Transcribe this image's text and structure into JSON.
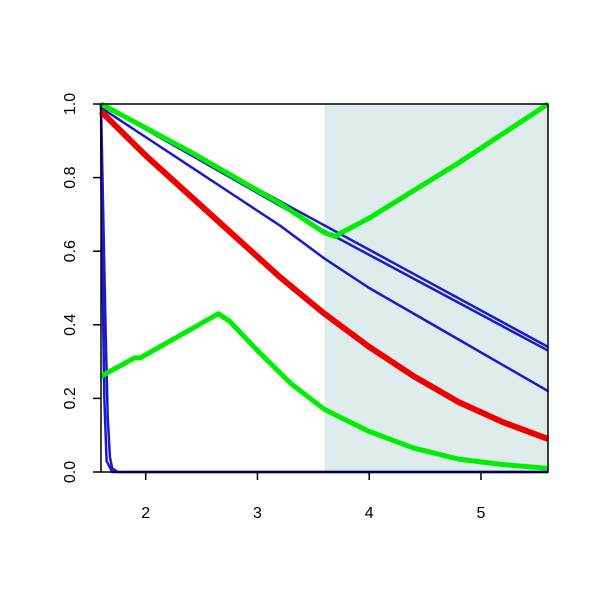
{
  "chart_data": {
    "type": "line",
    "xlim": [
      1.6,
      5.6
    ],
    "ylim": [
      0,
      1
    ],
    "xticks": [
      2,
      3,
      4,
      5
    ],
    "yticks": [
      {
        "value": 0,
        "label": "0.0"
      },
      0.2,
      0.4,
      0.6,
      0.8,
      {
        "value": 1,
        "label": "1.0"
      }
    ],
    "shade": {
      "xlim": [
        3.6,
        5.6
      ],
      "color": "#dfecec"
    },
    "series": [
      {
        "color": "#1a1acc",
        "width": 2.5,
        "x": [
          1.6,
          5.6
        ],
        "values": [
          1.0,
          0.34
        ]
      },
      {
        "color": "#1a1acc",
        "width": 2.5,
        "x": [
          1.6,
          3.6,
          5.6
        ],
        "values": [
          1.0,
          0.655,
          0.33
        ]
      },
      {
        "color": "#1a1acc",
        "width": 2.5,
        "x": [
          1.6,
          2.0,
          2.4,
          2.8,
          3.2,
          3.6,
          4.0,
          4.4,
          4.8,
          5.2,
          5.6
        ],
        "values": [
          0.99,
          0.91,
          0.83,
          0.75,
          0.67,
          0.58,
          0.5,
          0.43,
          0.36,
          0.29,
          0.22
        ]
      },
      {
        "color": "#1a1acc",
        "width": 2.5,
        "x": [
          1.6,
          1.62,
          1.64,
          1.66,
          1.68,
          1.7,
          1.75,
          5.6
        ],
        "values": [
          1.0,
          0.7,
          0.4,
          0.15,
          0.04,
          0.01,
          0,
          0
        ]
      },
      {
        "color": "#1a1acc",
        "width": 2.5,
        "x": [
          1.6,
          1.61,
          1.63,
          1.65,
          1.7,
          5.6
        ],
        "values": [
          1.0,
          0.6,
          0.2,
          0.03,
          0,
          0
        ]
      },
      {
        "color": "#ee0000",
        "width": 6,
        "x": [
          1.6,
          2.0,
          2.4,
          2.8,
          3.2,
          3.6,
          4.0,
          4.4,
          4.8,
          5.2,
          5.6
        ],
        "values": [
          0.98,
          0.86,
          0.75,
          0.64,
          0.53,
          0.43,
          0.34,
          0.26,
          0.19,
          0.135,
          0.09
        ]
      },
      {
        "color": "#00ee00",
        "width": 5,
        "x": [
          1.6,
          2.0,
          2.4,
          2.8,
          3.2,
          3.6,
          3.7,
          3.75,
          4.0,
          4.8,
          5.6
        ],
        "values": [
          1.0,
          0.935,
          0.87,
          0.8,
          0.73,
          0.65,
          0.64,
          0.65,
          0.69,
          0.84,
          1.0
        ]
      },
      {
        "color": "#00ee00",
        "width": 5,
        "x": [
          1.6,
          1.9,
          1.95,
          2.65,
          2.75,
          3.0,
          3.3,
          3.6,
          4.0,
          4.4,
          4.8,
          5.2,
          5.6
        ],
        "values": [
          0.26,
          0.31,
          0.31,
          0.43,
          0.41,
          0.33,
          0.24,
          0.17,
          0.11,
          0.065,
          0.035,
          0.02,
          0.01
        ]
      }
    ]
  }
}
